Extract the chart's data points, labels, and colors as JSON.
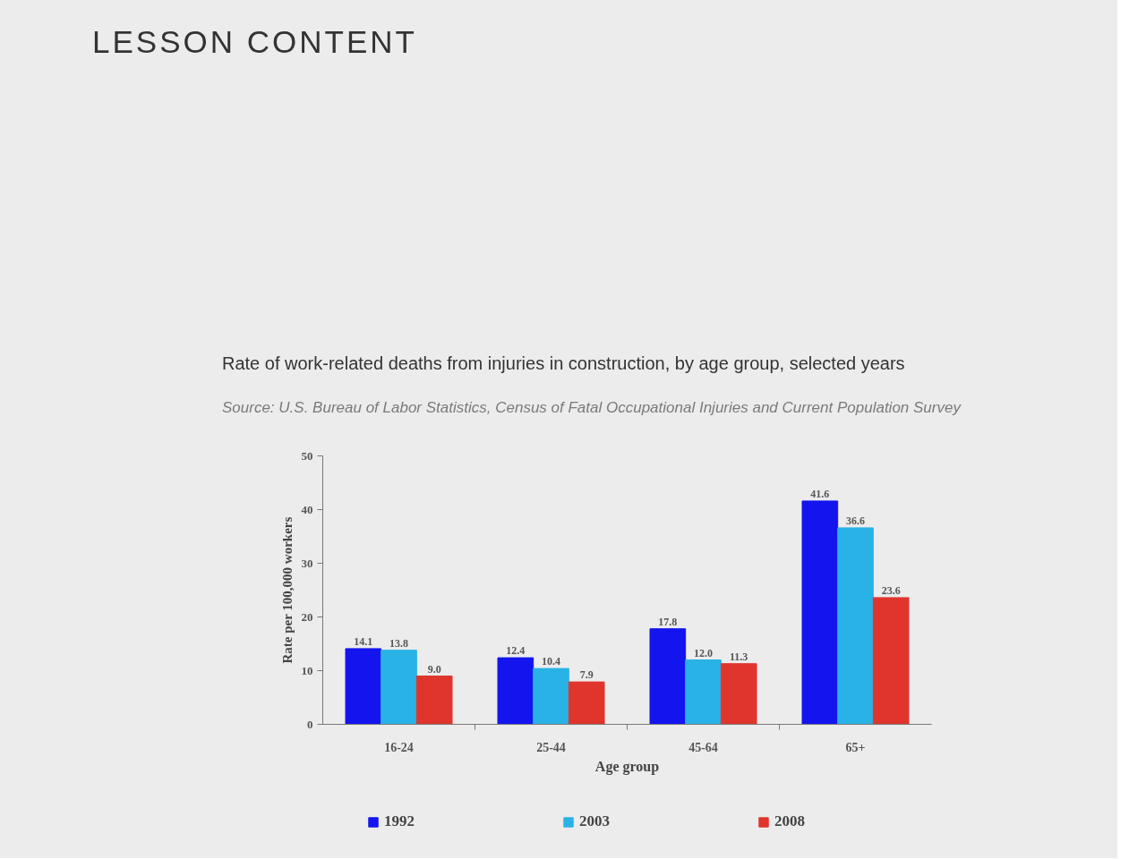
{
  "chart_data": {
    "type": "bar",
    "title": "Rate of work-related deaths from injuries in construction, by age group, selected years",
    "annotations": [
      "LESSON CONTENT",
      "Source: U.S. Bureau of Labor Statistics, Census of Fatal Occupational Injuries and Current Population Survey"
    ],
    "xlabel": "Age group",
    "ylabel": "Rate per 100,000 workers",
    "categories": [
      "16-24",
      "25-44",
      "45-64",
      "65+"
    ],
    "series": [
      {
        "name": "1992",
        "color": "#1414ee",
        "values": [
          14.1,
          12.4,
          17.8,
          41.6
        ],
        "value_labels": [
          "14.1",
          "12.4",
          "17.8",
          "41.6"
        ]
      },
      {
        "name": "2003",
        "color": "#29b2e6",
        "values": [
          13.8,
          10.4,
          12.0,
          36.6
        ],
        "value_labels": [
          "13.8",
          "10.4",
          "12.0",
          "36.6"
        ]
      },
      {
        "name": "2008",
        "color": "#e0352d",
        "values": [
          9.0,
          7.9,
          11.3,
          23.6
        ],
        "value_labels": [
          "9.0",
          "7.9",
          "11.3",
          "23.6"
        ]
      }
    ],
    "ylim": [
      0,
      50
    ],
    "yticks": [
      0,
      10,
      20,
      30,
      40,
      50
    ],
    "grid": false,
    "legend": "bottom"
  }
}
